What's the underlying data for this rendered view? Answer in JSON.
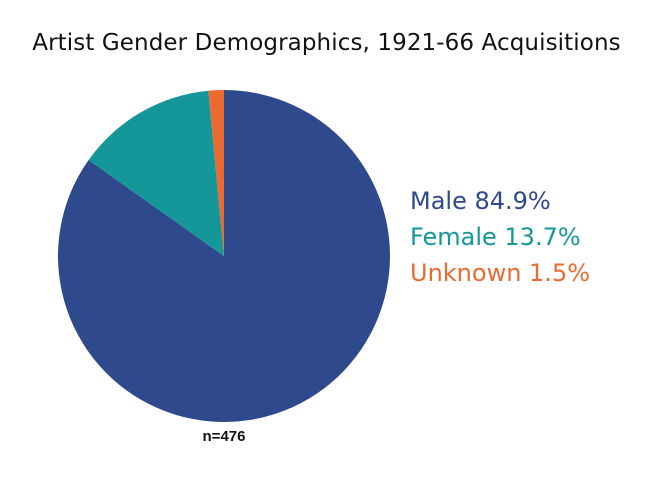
{
  "chart_data": {
    "type": "pie",
    "title": "Artist Gender Demographics, 1921-66 Acquisitions",
    "slices": [
      {
        "label": "Male",
        "value": 84.9,
        "display": "Male 84.9%",
        "color": "#2e4a8c"
      },
      {
        "label": "Female",
        "value": 13.7,
        "display": "Female 13.7%",
        "color": "#15979a"
      },
      {
        "label": "Unknown",
        "value": 1.5,
        "display": "Unknown 1.5%",
        "color": "#ec6a2f"
      }
    ],
    "start_angle_deg": 0,
    "direction": "clockwise",
    "legend_placement": "right",
    "note": "n=476"
  }
}
